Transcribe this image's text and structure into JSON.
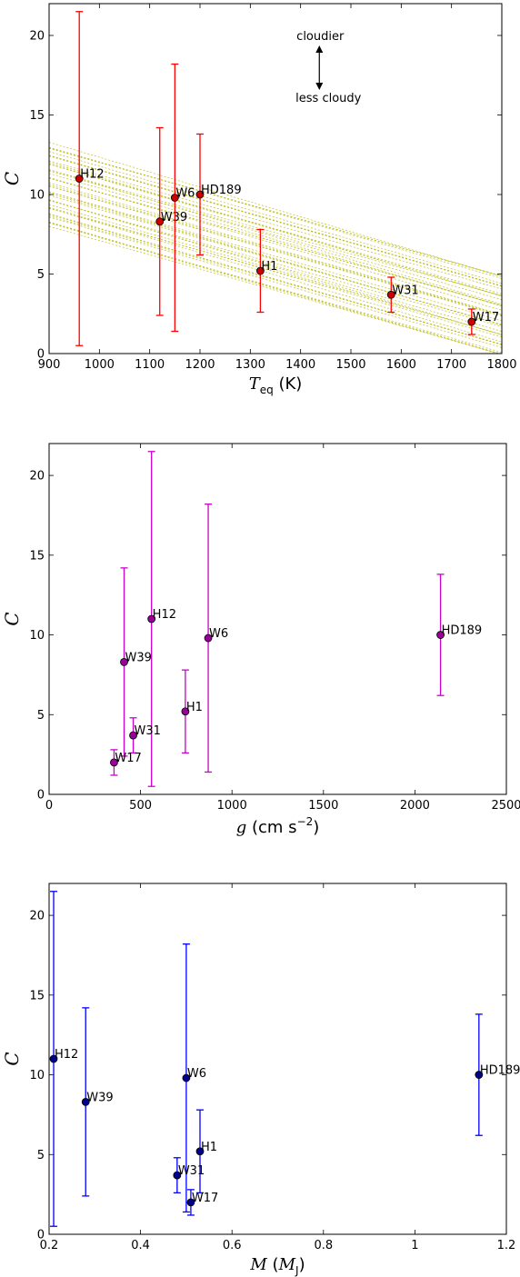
{
  "chart_data": [
    {
      "type": "scatter",
      "xlabel": "T_eq (K)",
      "ylabel": "C",
      "xlim": [
        900,
        1800
      ],
      "ylim": [
        0,
        22
      ],
      "xticks": [
        900,
        1000,
        1100,
        1200,
        1300,
        1400,
        1500,
        1600,
        1700,
        1800
      ],
      "yticks": [
        0,
        5,
        10,
        15,
        20
      ],
      "marker_color": "#cc0000",
      "errorbar_color": "#ff0000",
      "band_color": "#b5b500",
      "annotations": [
        "cloudier",
        "less cloudy"
      ],
      "points": [
        {
          "name": "H12",
          "x": 960,
          "y": 11.0,
          "ylo": 0.5,
          "yhi": 21.5
        },
        {
          "name": "W39",
          "x": 1120,
          "y": 8.3,
          "ylo": 2.4,
          "yhi": 14.2
        },
        {
          "name": "W6",
          "x": 1150,
          "y": 9.8,
          "ylo": 1.4,
          "yhi": 18.2
        },
        {
          "name": "HD189",
          "x": 1200,
          "y": 10.0,
          "ylo": 6.2,
          "yhi": 13.8
        },
        {
          "name": "H1",
          "x": 1320,
          "y": 5.2,
          "ylo": 2.6,
          "yhi": 7.8
        },
        {
          "name": "W31",
          "x": 1580,
          "y": 3.7,
          "ylo": 2.6,
          "yhi": 4.8
        },
        {
          "name": "W17",
          "x": 1740,
          "y": 2.0,
          "ylo": 1.2,
          "yhi": 2.8
        }
      ]
    },
    {
      "type": "scatter",
      "xlabel": "g (cm s^-2)",
      "ylabel": "C",
      "xlim": [
        0,
        2500
      ],
      "ylim": [
        0,
        22
      ],
      "xticks": [
        0,
        500,
        1000,
        1500,
        2000,
        2500
      ],
      "yticks": [
        0,
        5,
        10,
        15,
        20
      ],
      "marker_color": "#990099",
      "errorbar_color": "#cc00cc",
      "points": [
        {
          "name": "H12",
          "x": 560,
          "y": 11.0,
          "ylo": 0.5,
          "yhi": 21.5
        },
        {
          "name": "W39",
          "x": 410,
          "y": 8.3,
          "ylo": 2.4,
          "yhi": 14.2
        },
        {
          "name": "W6",
          "x": 870,
          "y": 9.8,
          "ylo": 1.4,
          "yhi": 18.2
        },
        {
          "name": "HD189",
          "x": 2140,
          "y": 10.0,
          "ylo": 6.2,
          "yhi": 13.8
        },
        {
          "name": "H1",
          "x": 745,
          "y": 5.2,
          "ylo": 2.6,
          "yhi": 7.8
        },
        {
          "name": "W31",
          "x": 460,
          "y": 3.7,
          "ylo": 2.6,
          "yhi": 4.8
        },
        {
          "name": "W17",
          "x": 355,
          "y": 2.0,
          "ylo": 1.2,
          "yhi": 2.8
        }
      ]
    },
    {
      "type": "scatter",
      "xlabel": "M (M_J)",
      "ylabel": "C",
      "xlim": [
        0.2,
        1.2
      ],
      "ylim": [
        0,
        22
      ],
      "xticks": [
        0.2,
        0.4,
        0.6,
        0.8,
        1.0,
        1.2
      ],
      "yticks": [
        0,
        5,
        10,
        15,
        20
      ],
      "marker_color": "#00008b",
      "errorbar_color": "#0000ff",
      "points": [
        {
          "name": "H12",
          "x": 0.21,
          "y": 11.0,
          "ylo": 0.5,
          "yhi": 21.5
        },
        {
          "name": "W39",
          "x": 0.28,
          "y": 8.3,
          "ylo": 2.4,
          "yhi": 14.2
        },
        {
          "name": "W6",
          "x": 0.5,
          "y": 9.8,
          "ylo": 1.4,
          "yhi": 18.2
        },
        {
          "name": "HD189",
          "x": 1.14,
          "y": 10.0,
          "ylo": 6.2,
          "yhi": 13.8
        },
        {
          "name": "H1",
          "x": 0.53,
          "y": 5.2,
          "ylo": 2.6,
          "yhi": 7.8
        },
        {
          "name": "W31",
          "x": 0.48,
          "y": 3.7,
          "ylo": 2.6,
          "yhi": 4.8
        },
        {
          "name": "W17",
          "x": 0.51,
          "y": 2.0,
          "ylo": 1.2,
          "yhi": 2.8
        }
      ]
    }
  ]
}
